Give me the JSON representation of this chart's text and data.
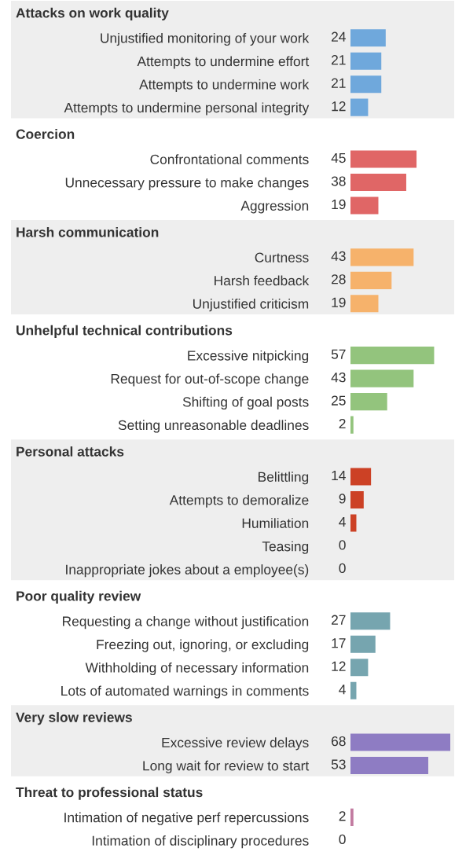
{
  "chart_data": [
    {
      "type": "bar",
      "orientation": "horizontal",
      "title": "Attacks on work quality",
      "categories": [
        "Unjustified monitoring of your work",
        "Attempts to undermine effort",
        "Attempts to undermine work",
        "Attempts to undermine personal integrity"
      ],
      "values": [
        24,
        21,
        21,
        12
      ],
      "color": "#6fa8dc",
      "data_labels": true,
      "tick_labels": "y"
    },
    {
      "type": "bar",
      "orientation": "horizontal",
      "title": "Coercion",
      "categories": [
        "Confrontational comments",
        "Unnecessary pressure to make changes",
        "Aggression"
      ],
      "values": [
        45,
        38,
        19
      ],
      "color": "#e06666",
      "data_labels": true,
      "tick_labels": "y"
    },
    {
      "type": "bar",
      "orientation": "horizontal",
      "title": "Harsh communication",
      "categories": [
        "Curtness",
        "Harsh feedback",
        "Unjustified criticism"
      ],
      "values": [
        43,
        28,
        19
      ],
      "color": "#f6b26b",
      "data_labels": true,
      "tick_labels": "y"
    },
    {
      "type": "bar",
      "orientation": "horizontal",
      "title": "Unhelpful technical contributions",
      "categories": [
        "Excessive nitpicking",
        "Request for out-of-scope change",
        "Shifting of goal posts",
        "Setting unreasonable deadlines"
      ],
      "values": [
        57,
        43,
        25,
        2
      ],
      "color": "#93c47d",
      "data_labels": true,
      "tick_labels": "y"
    },
    {
      "type": "bar",
      "orientation": "horizontal",
      "title": "Personal attacks",
      "categories": [
        "Belittling",
        "Attempts to demoralize",
        "Humiliation",
        "Teasing",
        "Inappropriate jokes about a employee(s)"
      ],
      "values": [
        14,
        9,
        4,
        0,
        0
      ],
      "color": "#cc4125",
      "data_labels": true,
      "tick_labels": "y"
    },
    {
      "type": "bar",
      "orientation": "horizontal",
      "title": "Poor quality review",
      "categories": [
        "Requesting a change without justification",
        "Freezing out, ignoring, or excluding",
        "Withholding of necessary information",
        "Lots of automated warnings in comments"
      ],
      "values": [
        27,
        17,
        12,
        4
      ],
      "color": "#76a5af",
      "data_labels": true,
      "tick_labels": "y"
    },
    {
      "type": "bar",
      "orientation": "horizontal",
      "title": "Very slow reviews",
      "categories": [
        "Excessive review delays",
        "Long wait for review to start"
      ],
      "values": [
        68,
        53
      ],
      "color": "#8e7cc3",
      "data_labels": true,
      "tick_labels": "y"
    },
    {
      "type": "bar",
      "orientation": "horizontal",
      "title": "Threat to professional status",
      "categories": [
        "Intimation of negative perf repercussions",
        "Intimation of disciplinary procedures"
      ],
      "values": [
        2,
        0
      ],
      "color": "#c27ba0",
      "data_labels": true,
      "tick_labels": "y"
    }
  ]
}
